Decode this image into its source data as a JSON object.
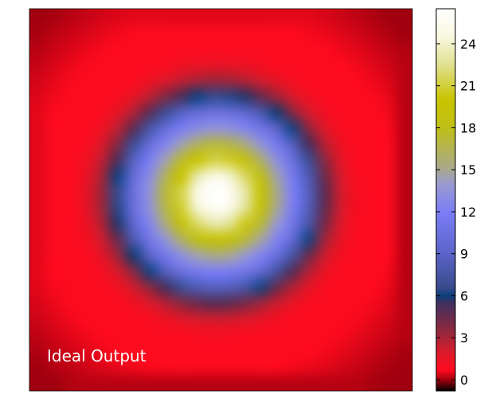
{
  "chart_data": {
    "type": "heatmap",
    "title": "",
    "annotation": "Ideal Output",
    "xlabel": "",
    "ylabel": "",
    "colorbar": {
      "ticks": [
        0,
        3,
        6,
        9,
        12,
        15,
        18,
        21,
        24
      ],
      "range": [
        -0.8,
        26.5
      ],
      "colormap_stops": [
        {
          "value": -0.8,
          "color": "#000000"
        },
        {
          "value": 0.0,
          "color": "#a0000f"
        },
        {
          "value": 0.7,
          "color": "#ff0a1e"
        },
        {
          "value": 2.0,
          "color": "#d81b2c"
        },
        {
          "value": 3.5,
          "color": "#90283e"
        },
        {
          "value": 5.5,
          "color": "#40305e"
        },
        {
          "value": 6.0,
          "color": "#0a3f7a"
        },
        {
          "value": 6.6,
          "color": "#3a4a8c"
        },
        {
          "value": 9.0,
          "color": "#5a64c8"
        },
        {
          "value": 12.0,
          "color": "#7c7ef6"
        },
        {
          "value": 14.0,
          "color": "#9a9ad0"
        },
        {
          "value": 15.0,
          "color": "#a8a890"
        },
        {
          "value": 18.0,
          "color": "#bfbf18"
        },
        {
          "value": 20.0,
          "color": "#c8c400"
        },
        {
          "value": 22.5,
          "color": "#e0e090"
        },
        {
          "value": 24.5,
          "color": "#f8f8e0"
        },
        {
          "value": 26.5,
          "color": "#ffffff"
        }
      ]
    },
    "field": {
      "grid_size": 24,
      "peak_value": 26.5,
      "edge_value": 0.8,
      "corner_value": 0.0,
      "blue_ring_value": 6.0,
      "center_x_fraction": 0.49,
      "center_y_fraction": 0.49
    }
  }
}
